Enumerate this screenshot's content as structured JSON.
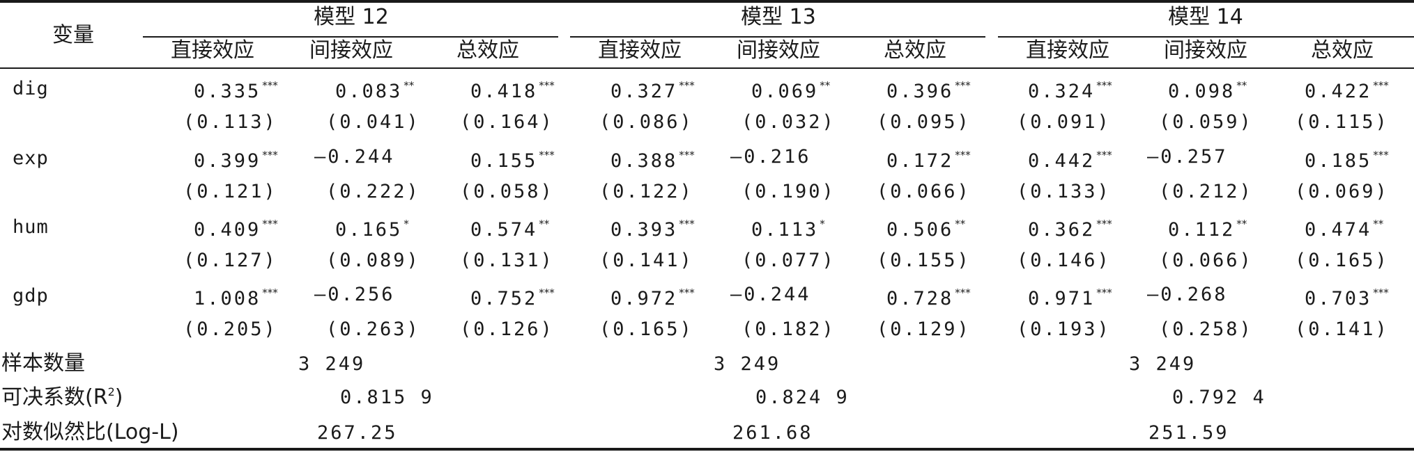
{
  "header": {
    "variable_label": "变量",
    "models": [
      "模型 12",
      "模型 13",
      "模型 14"
    ],
    "effects": [
      "直接效应",
      "间接效应",
      "总效应"
    ]
  },
  "rows": [
    {
      "var": "dig",
      "coef": [
        [
          "0.335",
          "***"
        ],
        [
          "0.083",
          "**"
        ],
        [
          "0.418",
          "***"
        ],
        [
          "0.327",
          "***"
        ],
        [
          "0.069",
          "**"
        ],
        [
          "0.396",
          "***"
        ],
        [
          "0.324",
          "***"
        ],
        [
          "0.098",
          "**"
        ],
        [
          "0.422",
          "***"
        ]
      ],
      "se": [
        "(0.113)",
        "(0.041)",
        "(0.164)",
        "(0.086)",
        "(0.032)",
        "(0.095)",
        "(0.091)",
        "(0.059)",
        "(0.115)"
      ]
    },
    {
      "var": "exp",
      "coef": [
        [
          "0.399",
          "***"
        ],
        [
          "—0.244",
          ""
        ],
        [
          "0.155",
          "***"
        ],
        [
          "0.388",
          "***"
        ],
        [
          "—0.216",
          ""
        ],
        [
          "0.172",
          "***"
        ],
        [
          "0.442",
          "***"
        ],
        [
          "—0.257",
          ""
        ],
        [
          "0.185",
          "***"
        ]
      ],
      "se": [
        "(0.121)",
        "(0.222)",
        "(0.058)",
        "(0.122)",
        "(0.190)",
        "(0.066)",
        "(0.133)",
        "(0.212)",
        "(0.069)"
      ]
    },
    {
      "var": "hum",
      "coef": [
        [
          "0.409",
          "***"
        ],
        [
          "0.165",
          "*"
        ],
        [
          "0.574",
          "**"
        ],
        [
          "0.393",
          "***"
        ],
        [
          "0.113",
          "*"
        ],
        [
          "0.506",
          "**"
        ],
        [
          "0.362",
          "***"
        ],
        [
          "0.112",
          "**"
        ],
        [
          "0.474",
          "**"
        ]
      ],
      "se": [
        "(0.127)",
        "(0.089)",
        "(0.131)",
        "(0.141)",
        "(0.077)",
        "(0.155)",
        "(0.146)",
        "(0.066)",
        "(0.165)"
      ]
    },
    {
      "var": "gdp",
      "coef": [
        [
          "1.008",
          "***"
        ],
        [
          "—0.256",
          ""
        ],
        [
          "0.752",
          "***"
        ],
        [
          "0.972",
          "***"
        ],
        [
          "—0.244",
          ""
        ],
        [
          "0.728",
          "***"
        ],
        [
          "0.971",
          "***"
        ],
        [
          "—0.268",
          ""
        ],
        [
          "0.703",
          "***"
        ]
      ],
      "se": [
        "(0.205)",
        "(0.263)",
        "(0.126)",
        "(0.165)",
        "(0.182)",
        "(0.129)",
        "(0.193)",
        "(0.258)",
        "(0.141)"
      ]
    }
  ],
  "stats": [
    {
      "label": "样本数量",
      "values": [
        "3 249",
        "3 249",
        "3 249"
      ]
    },
    {
      "label_main": "可决系数(R",
      "label_sup": "2",
      "label_end": ")",
      "values": [
        "0.815 9",
        "0.824 9",
        "0.792 4"
      ]
    },
    {
      "label": "对数似然比(Log-L)",
      "values": [
        "267.25",
        "261.68",
        "251.59"
      ]
    }
  ]
}
